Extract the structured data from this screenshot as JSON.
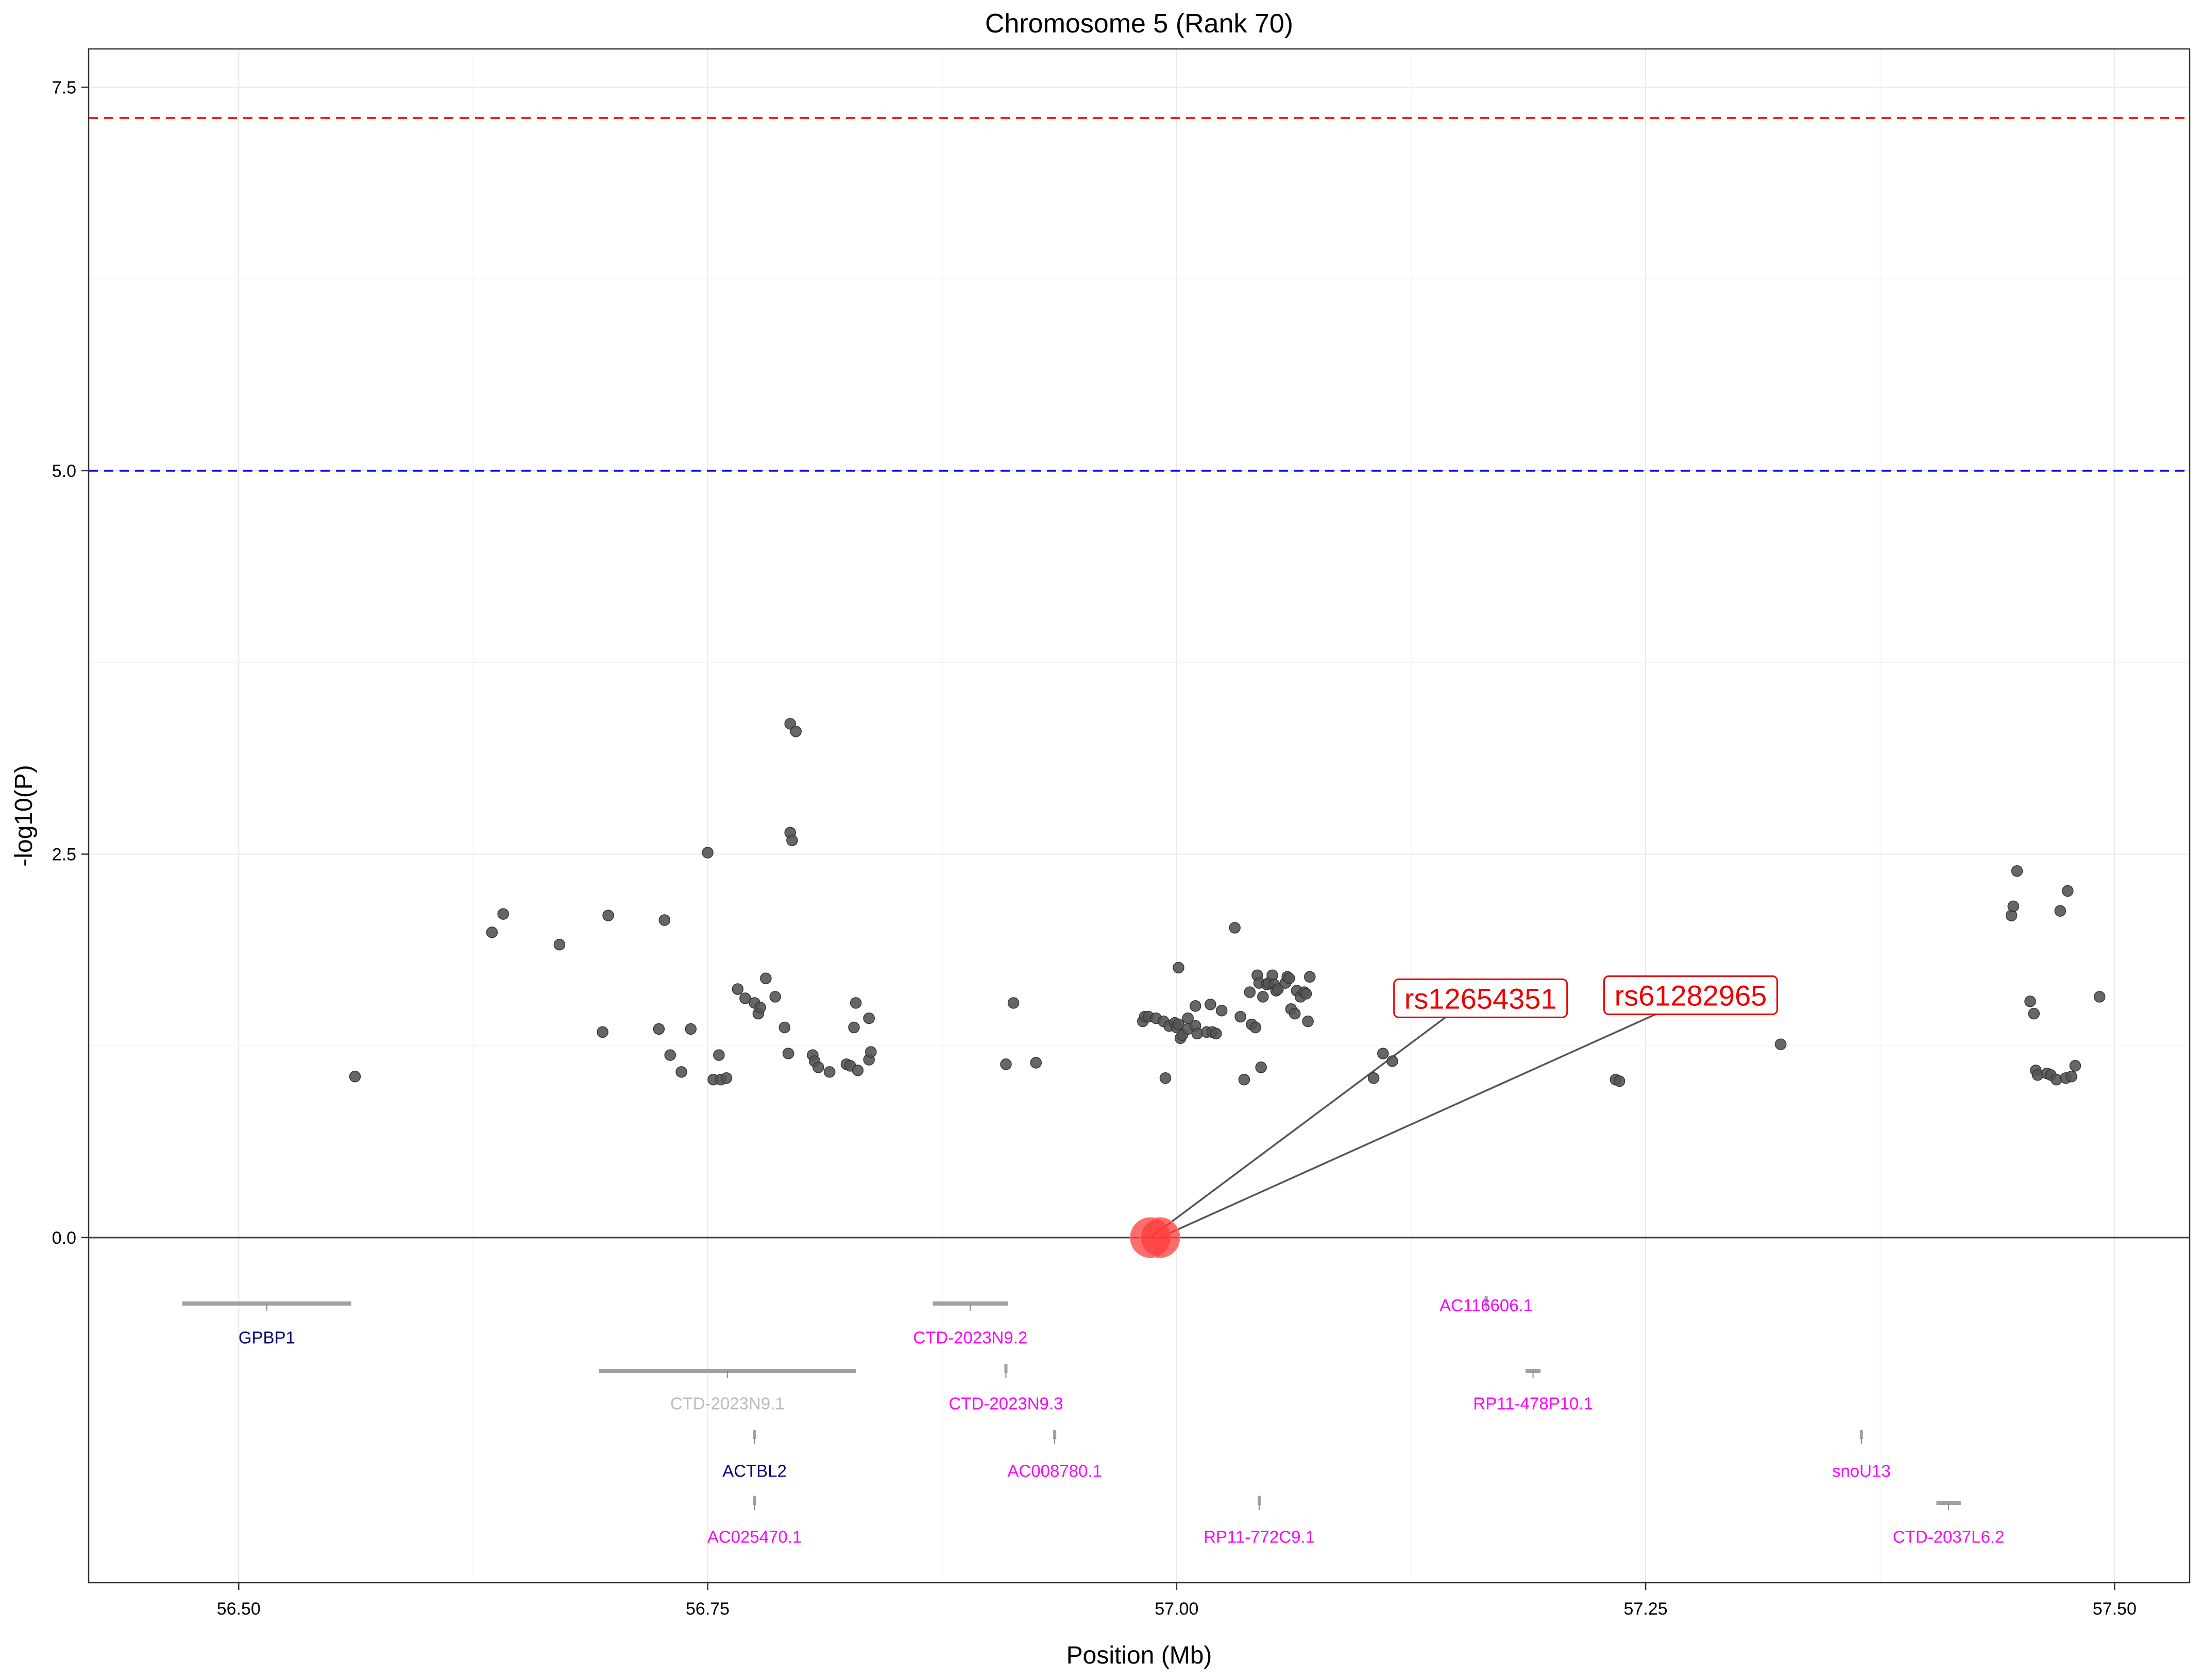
{
  "chart_data": {
    "type": "scatter",
    "title": "Chromosome 5 (Rank 70)",
    "xlabel": "Position (Mb)",
    "ylabel": "-log10(P)",
    "xlim": [
      56.42,
      57.54
    ],
    "ylim": [
      -2.25,
      7.75
    ],
    "x_ticks": [
      {
        "value": 56.5,
        "label": "56.50"
      },
      {
        "value": 56.75,
        "label": "56.75"
      },
      {
        "value": 57.0,
        "label": "57.00"
      },
      {
        "value": 57.25,
        "label": "57.25"
      },
      {
        "value": 57.5,
        "label": "57.50"
      }
    ],
    "y_ticks": [
      {
        "value": 0,
        "label": "0.0"
      },
      {
        "value": 2.5,
        "label": "2.5"
      },
      {
        "value": 5,
        "label": "5.0"
      },
      {
        "value": 7.5,
        "label": "7.5"
      }
    ],
    "grid": true,
    "colors": {
      "points": "#555555",
      "highlight": "#ff3b3b",
      "genome_wide_line": "#ff0000",
      "suggestive_line": "#0000ff",
      "gene_bar": "#a0a0a0",
      "gene_coding": "#000080",
      "gene_noncoding": "#ff00ff",
      "gene_gray": "#bbbbbb",
      "label_text": "#ee0000"
    },
    "threshold_lines": [
      {
        "y": 7.3,
        "color": "#ff0000"
      },
      {
        "y": 5.0,
        "color": "#0000ff"
      }
    ],
    "points": [
      [
        56.562,
        1.05
      ],
      [
        56.635,
        1.99
      ],
      [
        56.641,
        2.11
      ],
      [
        56.671,
        1.91
      ],
      [
        56.694,
        1.34
      ],
      [
        56.697,
        2.1
      ],
      [
        56.724,
        1.36
      ],
      [
        56.727,
        2.07
      ],
      [
        56.73,
        1.19
      ],
      [
        56.736,
        1.08
      ],
      [
        56.741,
        1.36
      ],
      [
        56.75,
        2.51
      ],
      [
        56.753,
        1.03
      ],
      [
        56.756,
        1.19
      ],
      [
        56.757,
        1.03
      ],
      [
        56.76,
        1.04
      ],
      [
        56.766,
        1.62
      ],
      [
        56.77,
        1.56
      ],
      [
        56.775,
        1.53
      ],
      [
        56.777,
        1.46
      ],
      [
        56.778,
        1.5
      ],
      [
        56.781,
        1.69
      ],
      [
        56.786,
        1.57
      ],
      [
        56.791,
        1.37
      ],
      [
        56.793,
        1.2
      ],
      [
        56.794,
        3.35
      ],
      [
        56.794,
        2.64
      ],
      [
        56.795,
        2.59
      ],
      [
        56.797,
        3.3
      ],
      [
        56.806,
        1.19
      ],
      [
        56.807,
        1.15
      ],
      [
        56.809,
        1.11
      ],
      [
        56.815,
        1.08
      ],
      [
        56.824,
        1.13
      ],
      [
        56.826,
        1.12
      ],
      [
        56.828,
        1.37
      ],
      [
        56.829,
        1.53
      ],
      [
        56.83,
        1.09
      ],
      [
        56.836,
        1.43
      ],
      [
        56.836,
        1.16
      ],
      [
        56.837,
        1.21
      ],
      [
        56.909,
        1.13
      ],
      [
        56.913,
        1.53
      ],
      [
        56.925,
        1.14
      ],
      [
        56.982,
        1.41
      ],
      [
        56.983,
        1.44
      ],
      [
        56.985,
        1.44
      ],
      [
        56.989,
        1.43
      ],
      [
        56.993,
        1.41
      ],
      [
        56.994,
        1.04
      ],
      [
        56.996,
        1.38
      ],
      [
        56.999,
        1.4
      ],
      [
        57.0,
        1.37
      ],
      [
        57.001,
        1.39
      ],
      [
        57.001,
        1.76
      ],
      [
        57.002,
        1.3
      ],
      [
        57.003,
        1.32
      ],
      [
        57.006,
        1.43
      ],
      [
        57.006,
        1.36
      ],
      [
        57.01,
        1.38
      ],
      [
        57.01,
        1.51
      ],
      [
        57.011,
        1.33
      ],
      [
        57.016,
        1.34
      ],
      [
        57.018,
        1.52
      ],
      [
        57.019,
        1.34
      ],
      [
        57.021,
        1.33
      ],
      [
        57.024,
        1.48
      ],
      [
        57.031,
        2.02
      ],
      [
        57.034,
        1.44
      ],
      [
        57.036,
        1.03
      ],
      [
        57.039,
        1.6
      ],
      [
        57.04,
        1.39
      ],
      [
        57.042,
        1.37
      ],
      [
        57.043,
        1.71
      ],
      [
        57.044,
        1.66
      ],
      [
        57.045,
        1.11
      ],
      [
        57.046,
        1.57
      ],
      [
        57.048,
        1.65
      ],
      [
        57.049,
        1.66
      ],
      [
        57.051,
        1.71
      ],
      [
        57.052,
        1.65
      ],
      [
        57.053,
        1.61
      ],
      [
        57.054,
        1.62
      ],
      [
        57.058,
        1.66
      ],
      [
        57.059,
        1.7
      ],
      [
        57.06,
        1.69
      ],
      [
        57.061,
        1.49
      ],
      [
        57.063,
        1.46
      ],
      [
        57.064,
        1.61
      ],
      [
        57.066,
        1.57
      ],
      [
        57.068,
        1.6
      ],
      [
        57.069,
        1.59
      ],
      [
        57.07,
        1.41
      ],
      [
        57.071,
        1.7
      ],
      [
        57.105,
        1.04
      ],
      [
        57.11,
        1.2
      ],
      [
        57.115,
        1.15
      ],
      [
        57.234,
        1.03
      ],
      [
        57.236,
        1.02
      ],
      [
        57.322,
        1.26
      ],
      [
        57.445,
        2.1
      ],
      [
        57.446,
        2.16
      ],
      [
        57.448,
        2.39
      ],
      [
        57.455,
        1.54
      ],
      [
        57.457,
        1.46
      ],
      [
        57.458,
        1.09
      ],
      [
        57.459,
        1.06
      ],
      [
        57.464,
        1.07
      ],
      [
        57.466,
        1.06
      ],
      [
        57.469,
        1.03
      ],
      [
        57.471,
        2.13
      ],
      [
        57.474,
        1.04
      ],
      [
        57.475,
        2.26
      ],
      [
        57.477,
        1.05
      ],
      [
        57.479,
        1.12
      ],
      [
        57.492,
        1.57
      ]
    ],
    "highlighted_snps": [
      {
        "name": "rs12654351",
        "x": 56.986,
        "y": 0.0
      },
      {
        "name": "rs61282965",
        "x": 56.991,
        "y": 0.0
      }
    ],
    "highlight_labels": [
      {
        "text": "rs12654351",
        "x": 57.162,
        "y": 1.56
      },
      {
        "text": "rs61282965",
        "x": 57.274,
        "y": 1.58
      }
    ],
    "genes": [
      {
        "name": "GPBP1",
        "start": 56.47,
        "end": 56.56,
        "bar_y": -0.43,
        "label_y": -0.65,
        "kind": "coding"
      },
      {
        "name": "CTD-2023N9.2",
        "start": 56.87,
        "end": 56.91,
        "bar_y": -0.43,
        "label_y": -0.65,
        "kind": "noncoding"
      },
      {
        "name": "AC116606.1",
        "start": 57.164,
        "end": 57.166,
        "bar_y": -0.43,
        "label_y": -0.44,
        "kind": "noncoding"
      },
      {
        "name": "CTD-2023N9.1",
        "start": 56.692,
        "end": 56.829,
        "bar_y": -0.87,
        "label_y": -1.08,
        "kind": "gray"
      },
      {
        "name": "CTD-2023N9.3",
        "start": 56.908,
        "end": 56.91,
        "bar_y": -0.87,
        "label_y": -1.08,
        "kind": "noncoding"
      },
      {
        "name": "RP11-478P10.1",
        "start": 57.186,
        "end": 57.194,
        "bar_y": -0.87,
        "label_y": -1.08,
        "kind": "noncoding"
      },
      {
        "name": "ACTBL2",
        "start": 56.774,
        "end": 56.776,
        "bar_y": -1.3,
        "label_y": -1.52,
        "kind": "coding"
      },
      {
        "name": "AC008780.1",
        "start": 56.934,
        "end": 56.936,
        "bar_y": -1.3,
        "label_y": -1.52,
        "kind": "noncoding"
      },
      {
        "name": "snoU13",
        "start": 57.364,
        "end": 57.366,
        "bar_y": -1.3,
        "label_y": -1.52,
        "kind": "noncoding"
      },
      {
        "name": "AC025470.1",
        "start": 56.774,
        "end": 56.776,
        "bar_y": -1.73,
        "label_y": -1.95,
        "kind": "noncoding"
      },
      {
        "name": "RP11-772C9.1",
        "start": 57.043,
        "end": 57.045,
        "bar_y": -1.73,
        "label_y": -1.95,
        "kind": "noncoding"
      },
      {
        "name": "CTD-2037L6.2",
        "start": 57.405,
        "end": 57.418,
        "bar_y": -1.73,
        "label_y": -1.95,
        "kind": "noncoding"
      }
    ]
  }
}
